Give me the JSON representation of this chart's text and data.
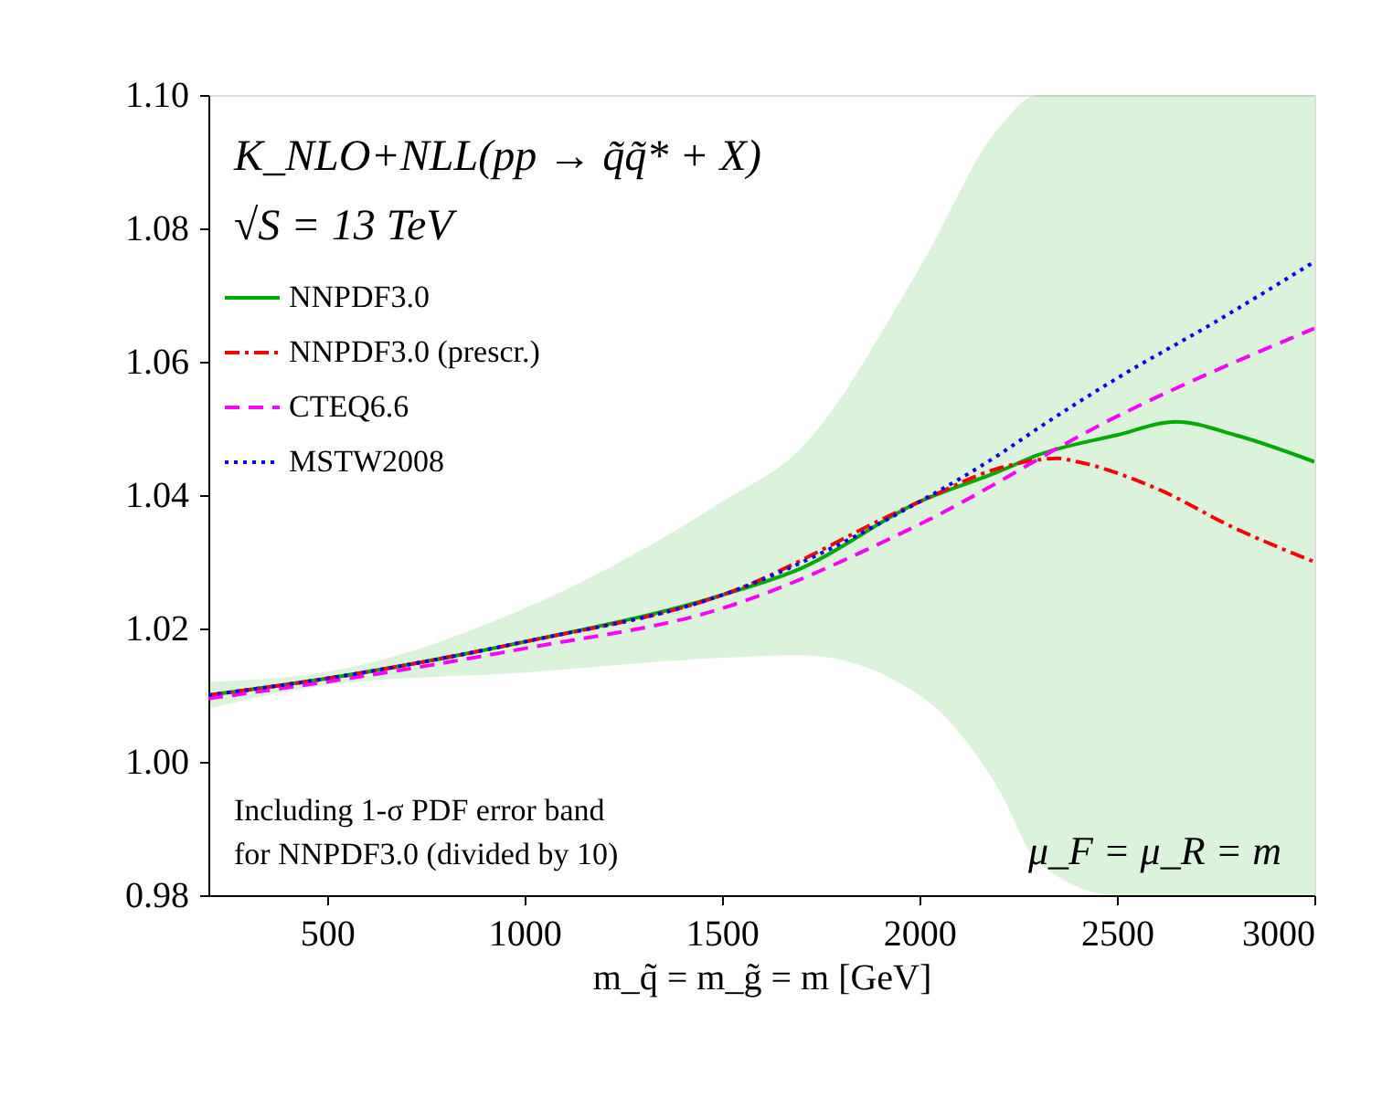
{
  "chart_data": {
    "type": "line",
    "xlabel": "m_q̃ = m_g̃ = m [GeV]",
    "annotations": [
      "K_NLO+NLL(pp → q̃q̃* + X)",
      "√S = 13 TeV",
      "Including 1-σ PDF error band",
      "for NNPDF3.0 (divided by 10)",
      "μ_F = μ_R = m"
    ],
    "xlim": [
      200,
      3000
    ],
    "xticks": [
      500,
      1000,
      1500,
      2000,
      2500,
      3000
    ],
    "ylim": [
      0.98,
      1.1
    ],
    "yticks": [
      {
        "value": 0.98,
        "label": "0.98"
      },
      {
        "value": 1.0,
        "label": "1.00"
      },
      {
        "value": 1.02,
        "label": "1.02"
      },
      {
        "value": 1.04,
        "label": "1.04"
      },
      {
        "value": 1.06,
        "label": "1.06"
      },
      {
        "value": 1.08,
        "label": "1.08"
      },
      {
        "value": 1.1,
        "label": "1.10"
      }
    ],
    "grid": false,
    "legend": "top left",
    "series": [
      {
        "name": "NNPDF3.0",
        "color": "#00aa00",
        "line_style": "solid",
        "x": [
          200,
          500,
          1000,
          1500,
          1700,
          2000,
          2200,
          2300,
          2500,
          2650,
          2800,
          3000
        ],
        "values": [
          1.01,
          1.0125,
          1.018,
          1.025,
          1.029,
          1.039,
          1.0435,
          1.046,
          1.049,
          1.051,
          1.049,
          1.045
        ],
        "lower": [
          1.008,
          1.0115,
          1.0134,
          1.0156,
          1.016,
          1.01,
          0.996,
          0.985,
          0.98,
          0.98,
          0.98,
          0.98
        ],
        "upper": [
          1.012,
          1.0135,
          1.023,
          1.039,
          1.047,
          1.074,
          1.095,
          1.1,
          1.1,
          1.1,
          1.1,
          1.1
        ]
      },
      {
        "name": "NNPDF3.0 (prescr.)",
        "color": "#ff0000",
        "line_style": "dashdot",
        "x": [
          200,
          500,
          1000,
          1500,
          2000,
          2200,
          2350,
          2400,
          2600,
          2800,
          3000
        ],
        "values": [
          1.01,
          1.0125,
          1.018,
          1.025,
          1.039,
          1.044,
          1.0455,
          1.045,
          1.041,
          1.035,
          1.03
        ]
      },
      {
        "name": "CTEQ6.6",
        "color": "#ff00ff",
        "line_style": "dashed",
        "x": [
          200,
          500,
          1000,
          1500,
          2000,
          2500,
          3000
        ],
        "values": [
          1.0095,
          1.012,
          1.017,
          1.023,
          1.0356,
          1.0518,
          1.065
        ]
      },
      {
        "name": "MSTW2008",
        "color": "#0000ff",
        "line_style": "dotted",
        "x": [
          200,
          500,
          1000,
          1500,
          2000,
          2200,
          2300,
          2500,
          2750,
          3000
        ],
        "values": [
          1.01,
          1.0125,
          1.018,
          1.025,
          1.039,
          1.046,
          1.05,
          1.0575,
          1.066,
          1.075
        ]
      }
    ]
  }
}
